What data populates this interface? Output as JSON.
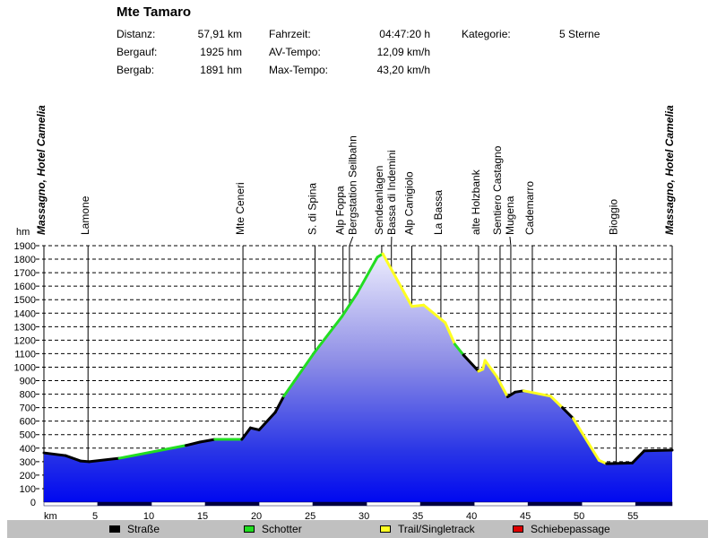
{
  "header": {
    "title": "Mte Tamaro",
    "stats": [
      {
        "label": "Distanz:",
        "value": "57,91 km"
      },
      {
        "label": "Bergauf:",
        "value": "1925 hm"
      },
      {
        "label": "Bergab:",
        "value": "1891 hm"
      },
      {
        "label": "Fahrzeit:",
        "value": "04:47:20 h"
      },
      {
        "label": "AV-Tempo:",
        "value": "12,09 km/h"
      },
      {
        "label": "Max-Tempo:",
        "value": "43,20 km/h"
      },
      {
        "label": "Kategorie:",
        "value": "5 Sterne"
      }
    ]
  },
  "chart_data": {
    "type": "area",
    "title": "Mte Tamaro",
    "xlabel": "km",
    "ylabel": "hm",
    "xlim": [
      0,
      58.4
    ],
    "ylim": [
      0,
      1900
    ],
    "xticks": [
      5,
      10,
      15,
      20,
      25,
      30,
      35,
      40,
      45,
      50,
      55
    ],
    "yticks": [
      0,
      100,
      200,
      300,
      400,
      500,
      600,
      700,
      800,
      900,
      1000,
      1100,
      1200,
      1300,
      1400,
      1500,
      1600,
      1700,
      1800,
      1900
    ],
    "grid": true,
    "surface_colors": {
      "road": "#000000",
      "gravel": "#22dd22",
      "trail": "#ffff22",
      "push": "#dd0000"
    },
    "profile": [
      {
        "km": 0,
        "elev": 365,
        "s": "road"
      },
      {
        "km": 2,
        "elev": 345,
        "s": "road"
      },
      {
        "km": 3.4,
        "elev": 305,
        "s": "road"
      },
      {
        "km": 4.2,
        "elev": 300,
        "s": "road"
      },
      {
        "km": 7,
        "elev": 325,
        "s": "road"
      },
      {
        "km": 13.2,
        "elev": 420,
        "s": "gravel"
      },
      {
        "km": 14.5,
        "elev": 445,
        "s": "road"
      },
      {
        "km": 15.9,
        "elev": 465,
        "s": "road"
      },
      {
        "km": 18.4,
        "elev": 465,
        "s": "gravel"
      },
      {
        "km": 19.2,
        "elev": 550,
        "s": "road"
      },
      {
        "km": 20,
        "elev": 535,
        "s": "road"
      },
      {
        "km": 21.5,
        "elev": 665,
        "s": "road"
      },
      {
        "km": 22.3,
        "elev": 785,
        "s": "road"
      },
      {
        "km": 25.2,
        "elev": 1115,
        "s": "gravel"
      },
      {
        "km": 27.7,
        "elev": 1375,
        "s": "gravel"
      },
      {
        "km": 29.1,
        "elev": 1545,
        "s": "gravel"
      },
      {
        "km": 31,
        "elev": 1815,
        "s": "gravel"
      },
      {
        "km": 31.5,
        "elev": 1840,
        "s": "gravel"
      },
      {
        "km": 34.2,
        "elev": 1450,
        "s": "trail"
      },
      {
        "km": 35.3,
        "elev": 1460,
        "s": "trail"
      },
      {
        "km": 37.3,
        "elev": 1330,
        "s": "trail"
      },
      {
        "km": 38.2,
        "elev": 1170,
        "s": "trail"
      },
      {
        "km": 39,
        "elev": 1090,
        "s": "gravel"
      },
      {
        "km": 40.4,
        "elev": 970,
        "s": "road"
      },
      {
        "km": 40.8,
        "elev": 985,
        "s": "trail"
      },
      {
        "km": 41,
        "elev": 1050,
        "s": "trail"
      },
      {
        "km": 42.1,
        "elev": 930,
        "s": "trail"
      },
      {
        "km": 43.1,
        "elev": 780,
        "s": "trail"
      },
      {
        "km": 43.8,
        "elev": 815,
        "s": "road"
      },
      {
        "km": 44.6,
        "elev": 825,
        "s": "road"
      },
      {
        "km": 47.1,
        "elev": 785,
        "s": "trail"
      },
      {
        "km": 48.2,
        "elev": 700,
        "s": "trail"
      },
      {
        "km": 49.2,
        "elev": 620,
        "s": "road"
      },
      {
        "km": 51.6,
        "elev": 310,
        "s": "trail"
      },
      {
        "km": 52.3,
        "elev": 285,
        "s": "trail"
      },
      {
        "km": 54.7,
        "elev": 290,
        "s": "road"
      },
      {
        "km": 55.8,
        "elev": 380,
        "s": "road"
      },
      {
        "km": 58.4,
        "elev": 385,
        "s": "road"
      }
    ],
    "waypoints": [
      {
        "name": "Massagno, Hotel Camelia",
        "km": 0,
        "style": "italic"
      },
      {
        "name": "Lamone",
        "km": 4.1
      },
      {
        "name": "Mte Ceneri",
        "km": 18.5
      },
      {
        "name": "S. di Spina",
        "km": 25.2
      },
      {
        "name": "Alp Foppa",
        "km": 27.8
      },
      {
        "name": "Bergstation Seilbahn",
        "km": 28.4
      },
      {
        "name": "Sendeanlagen",
        "km": 31.4
      },
      {
        "name": "Bassa di Indemini",
        "km": 32.3
      },
      {
        "name": "Alp Canigiolo",
        "km": 34.2
      },
      {
        "name": "La Bassa",
        "km": 36.9
      },
      {
        "name": "alte Holzbank",
        "km": 40.4
      },
      {
        "name": "Sentiero Castagno",
        "km": 42.4
      },
      {
        "name": "Mugena",
        "km": 43.4
      },
      {
        "name": "Cademarro",
        "km": 45.4
      },
      {
        "name": "Bioggio",
        "km": 53.2
      },
      {
        "name": "Massagno, Hotel Camelia",
        "km": 58.4,
        "style": "italic"
      }
    ]
  },
  "legend": [
    {
      "label": "Straße",
      "color": "#000000"
    },
    {
      "label": "Schotter",
      "color": "#22dd22"
    },
    {
      "label": "Trail/Singletrack",
      "color": "#ffff22"
    },
    {
      "label": "Schiebepassage",
      "color": "#dd0000"
    }
  ]
}
